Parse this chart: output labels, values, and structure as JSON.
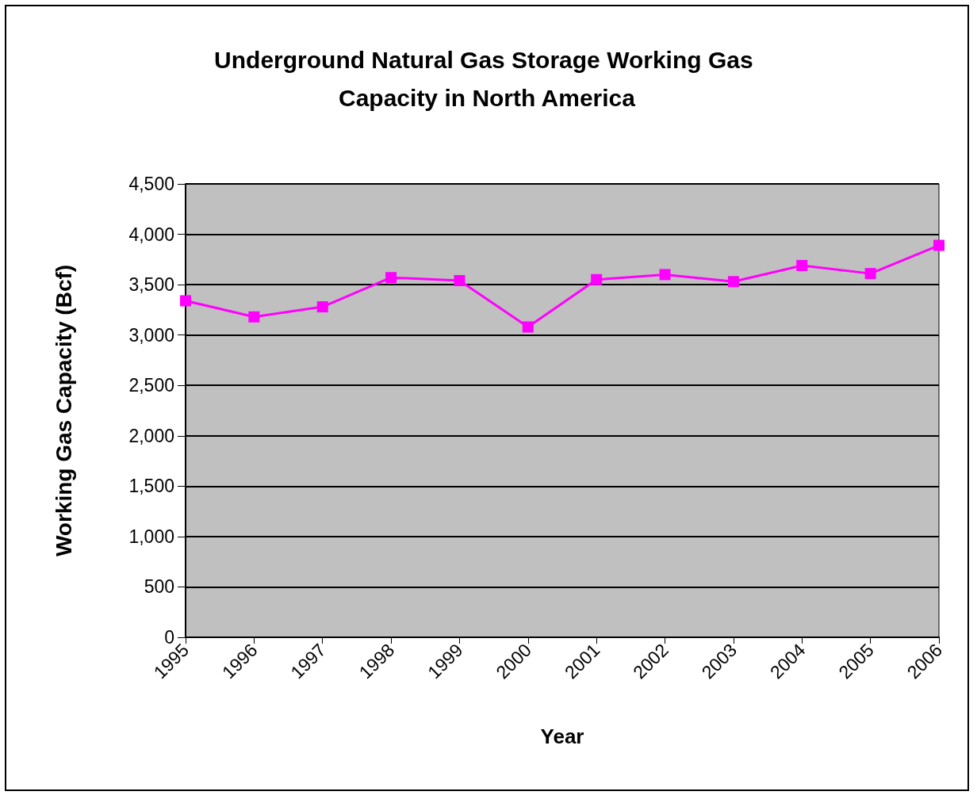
{
  "chart_data": {
    "type": "line",
    "title": "Underground Natural Gas Storage Working Gas Capacity in North America",
    "xlabel": "Year",
    "ylabel": "Working Gas Capacity (Bcf)",
    "categories": [
      "1995",
      "1996",
      "1997",
      "1998",
      "1999",
      "2000",
      "2001",
      "2002",
      "2003",
      "2004",
      "2005",
      "2006"
    ],
    "series": [
      {
        "color": "#ff00ff",
        "values": [
          3340,
          3180,
          3280,
          3570,
          3540,
          3080,
          3550,
          3600,
          3530,
          3690,
          3610,
          3890
        ]
      }
    ],
    "ylim": [
      0,
      4500
    ],
    "yticks": [
      0,
      500,
      {
        "value": 1000,
        "label": "1,000"
      },
      {
        "value": 1500,
        "label": "1,500"
      },
      {
        "value": 2000,
        "label": "2,000"
      },
      {
        "value": 2500,
        "label": "2,500"
      },
      {
        "value": 3000,
        "label": "3,000"
      },
      {
        "value": 3500,
        "label": "3,500"
      },
      {
        "value": 4000,
        "label": "4,000"
      },
      {
        "value": 4500,
        "label": "4,500"
      }
    ],
    "grid": "y",
    "marker": "square",
    "line_style": "solid"
  }
}
